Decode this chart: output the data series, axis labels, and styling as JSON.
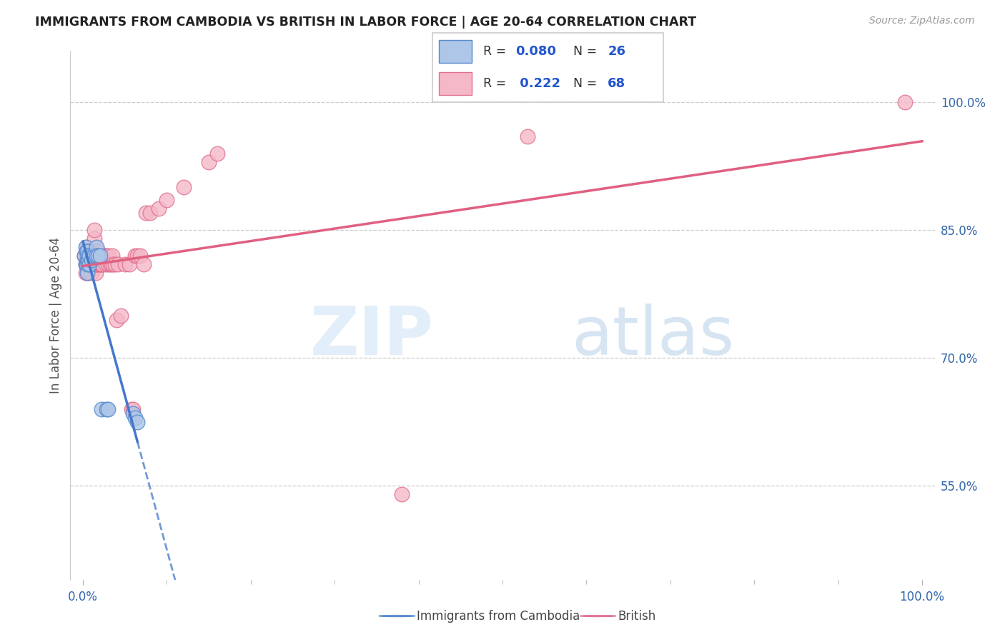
{
  "title": "IMMIGRANTS FROM CAMBODIA VS BRITISH IN LABOR FORCE | AGE 20-64 CORRELATION CHART",
  "source": "Source: ZipAtlas.com",
  "ylabel": "In Labor Force | Age 20-64",
  "ytick_labels": [
    "55.0%",
    "70.0%",
    "85.0%",
    "100.0%"
  ],
  "ytick_vals": [
    0.55,
    0.7,
    0.85,
    1.0
  ],
  "watermark_zip": "ZIP",
  "watermark_atlas": "atlas",
  "cambodia_color": "#aec6e8",
  "cambodia_edge": "#5588cc",
  "british_color": "#f5b8c8",
  "british_edge": "#e07090",
  "blue_line_color": "#4477cc",
  "pink_line_color": "#e06080",
  "cambodia_x": [
    0.002,
    0.003,
    0.003,
    0.004,
    0.004,
    0.005,
    0.005,
    0.005,
    0.006,
    0.006,
    0.007,
    0.008,
    0.008,
    0.01,
    0.012,
    0.014,
    0.016,
    0.016,
    0.018,
    0.02,
    0.022,
    0.028,
    0.03,
    0.06,
    0.062,
    0.065
  ],
  "cambodia_y": [
    0.82,
    0.81,
    0.83,
    0.81,
    0.825,
    0.815,
    0.8,
    0.825,
    0.81,
    0.82,
    0.815,
    0.81,
    0.82,
    0.815,
    0.82,
    0.82,
    0.83,
    0.82,
    0.82,
    0.82,
    0.64,
    0.64,
    0.64,
    0.635,
    0.63,
    0.625
  ],
  "british_x": [
    0.002,
    0.003,
    0.003,
    0.004,
    0.004,
    0.004,
    0.005,
    0.005,
    0.005,
    0.006,
    0.006,
    0.007,
    0.007,
    0.008,
    0.008,
    0.009,
    0.01,
    0.01,
    0.01,
    0.011,
    0.012,
    0.012,
    0.013,
    0.014,
    0.014,
    0.015,
    0.015,
    0.016,
    0.017,
    0.018,
    0.019,
    0.02,
    0.021,
    0.022,
    0.023,
    0.024,
    0.025,
    0.026,
    0.027,
    0.028,
    0.03,
    0.031,
    0.032,
    0.034,
    0.035,
    0.036,
    0.038,
    0.04,
    0.042,
    0.045,
    0.05,
    0.055,
    0.058,
    0.06,
    0.062,
    0.065,
    0.068,
    0.072,
    0.075,
    0.08,
    0.09,
    0.1,
    0.12,
    0.15,
    0.16,
    0.38,
    0.53,
    0.98
  ],
  "british_y": [
    0.82,
    0.8,
    0.81,
    0.83,
    0.815,
    0.82,
    0.81,
    0.8,
    0.82,
    0.81,
    0.82,
    0.8,
    0.81,
    0.82,
    0.81,
    0.82,
    0.8,
    0.815,
    0.81,
    0.825,
    0.815,
    0.81,
    0.81,
    0.84,
    0.85,
    0.8,
    0.81,
    0.81,
    0.81,
    0.825,
    0.81,
    0.81,
    0.81,
    0.81,
    0.81,
    0.82,
    0.82,
    0.82,
    0.81,
    0.82,
    0.81,
    0.82,
    0.81,
    0.81,
    0.82,
    0.81,
    0.81,
    0.745,
    0.81,
    0.75,
    0.81,
    0.81,
    0.64,
    0.64,
    0.82,
    0.82,
    0.82,
    0.81,
    0.87,
    0.87,
    0.875,
    0.885,
    0.9,
    0.93,
    0.94,
    0.54,
    0.96,
    1.0
  ],
  "r_cambodia": 0.08,
  "n_cambodia": 26,
  "r_british": 0.222,
  "n_british": 68,
  "xlim": [
    -0.015,
    1.015
  ],
  "ylim": [
    0.44,
    1.06
  ]
}
